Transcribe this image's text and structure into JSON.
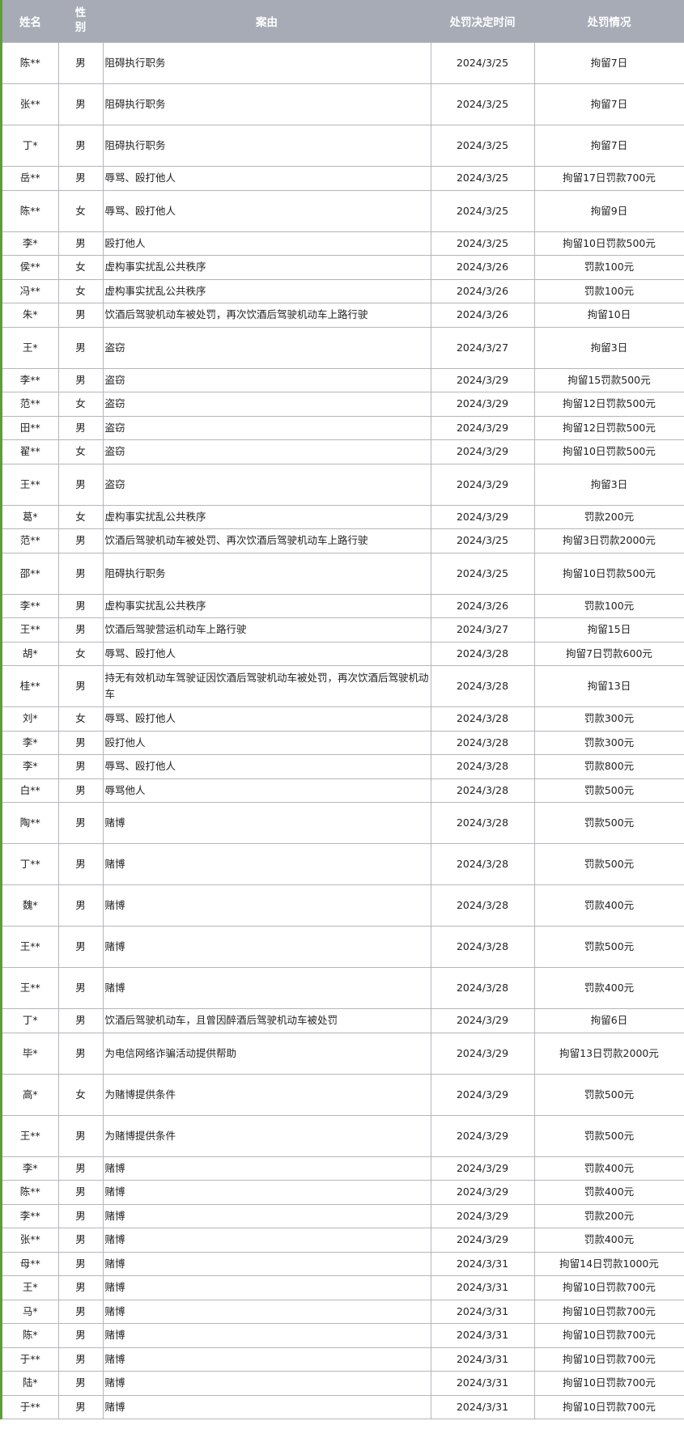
{
  "colors": {
    "header_bg": "#a6abb6",
    "left_border": "#5aa22f",
    "grid": "#b4b6bc"
  },
  "headers": [
    "姓名",
    "性别",
    "案由",
    "处罚决定时间",
    "处罚情况"
  ],
  "rows": [
    {
      "name": "陈**",
      "gender": "男",
      "reason": "阻碍执行职务",
      "date": "2024/3/25",
      "penalty": "拘留7日",
      "tall": true
    },
    {
      "name": "张**",
      "gender": "男",
      "reason": "阻碍执行职务",
      "date": "2024/3/25",
      "penalty": "拘留7日",
      "tall": true
    },
    {
      "name": "丁*",
      "gender": "男",
      "reason": "阻碍执行职务",
      "date": "2024/3/25",
      "penalty": "拘留7日",
      "tall": true
    },
    {
      "name": "岳**",
      "gender": "男",
      "reason": "辱骂、殴打他人",
      "date": "2024/3/25",
      "penalty": "拘留17日罚款700元",
      "tall": false
    },
    {
      "name": "陈**",
      "gender": "女",
      "reason": "辱骂、殴打他人",
      "date": "2024/3/25",
      "penalty": "拘留9日",
      "tall": true
    },
    {
      "name": "李*",
      "gender": "男",
      "reason": "殴打他人",
      "date": "2024/3/25",
      "penalty": "拘留10日罚款500元",
      "tall": false
    },
    {
      "name": "侯**",
      "gender": "女",
      "reason": "虚构事实扰乱公共秩序",
      "date": "2024/3/26",
      "penalty": "罚款100元",
      "tall": false
    },
    {
      "name": "冯**",
      "gender": "女",
      "reason": "虚构事实扰乱公共秩序",
      "date": "2024/3/26",
      "penalty": "罚款100元",
      "tall": false
    },
    {
      "name": "朱*",
      "gender": "男",
      "reason": "饮酒后驾驶机动车被处罚，再次饮酒后驾驶机动车上路行驶",
      "date": "2024/3/26",
      "penalty": "拘留10日",
      "tall": false
    },
    {
      "name": "王*",
      "gender": "男",
      "reason": "盗窃",
      "date": "2024/3/27",
      "penalty": "拘留3日",
      "tall": true
    },
    {
      "name": "李**",
      "gender": "男",
      "reason": "盗窃",
      "date": "2024/3/29",
      "penalty": "拘留15罚款500元",
      "tall": false
    },
    {
      "name": "范**",
      "gender": "女",
      "reason": "盗窃",
      "date": "2024/3/29",
      "penalty": "拘留12日罚款500元",
      "tall": false
    },
    {
      "name": "田**",
      "gender": "男",
      "reason": "盗窃",
      "date": "2024/3/29",
      "penalty": "拘留12日罚款500元",
      "tall": false
    },
    {
      "name": "翟**",
      "gender": "女",
      "reason": "盗窃",
      "date": "2024/3/29",
      "penalty": "拘留10日罚款500元",
      "tall": false
    },
    {
      "name": "王**",
      "gender": "男",
      "reason": "盗窃",
      "date": "2024/3/29",
      "penalty": "拘留3日",
      "tall": true
    },
    {
      "name": "葛*",
      "gender": "女",
      "reason": "虚构事实扰乱公共秩序",
      "date": "2024/3/29",
      "penalty": "罚款200元",
      "tall": false
    },
    {
      "name": "范**",
      "gender": "男",
      "reason": "饮酒后驾驶机动车被处罚、再次饮酒后驾驶机动车上路行驶",
      "date": "2024/3/25",
      "penalty": "拘留3日罚款2000元",
      "tall": false
    },
    {
      "name": "邵**",
      "gender": "男",
      "reason": "阻碍执行职务",
      "date": "2024/3/25",
      "penalty": "拘留10日罚款500元",
      "tall": true
    },
    {
      "name": "李**",
      "gender": "男",
      "reason": "虚构事实扰乱公共秩序",
      "date": "2024/3/26",
      "penalty": "罚款100元",
      "tall": false
    },
    {
      "name": "王**",
      "gender": "男",
      "reason": "饮酒后驾驶营运机动车上路行驶",
      "date": "2024/3/27",
      "penalty": "拘留15日",
      "tall": false
    },
    {
      "name": "胡*",
      "gender": "女",
      "reason": "辱骂、殴打他人",
      "date": "2024/3/28",
      "penalty": "拘留7日罚款600元",
      "tall": false
    },
    {
      "name": "桂**",
      "gender": "男",
      "reason": "持无有效机动车驾驶证因饮酒后驾驶机动车被处罚，再次饮酒后驾驶机动车",
      "date": "2024/3/28",
      "penalty": "拘留13日",
      "tall": true
    },
    {
      "name": "刘*",
      "gender": "女",
      "reason": "辱骂、殴打他人",
      "date": "2024/3/28",
      "penalty": "罚款300元",
      "tall": false
    },
    {
      "name": "李*",
      "gender": "男",
      "reason": "殴打他人",
      "date": "2024/3/28",
      "penalty": "罚款300元",
      "tall": false
    },
    {
      "name": "李*",
      "gender": "男",
      "reason": "辱骂、殴打他人",
      "date": "2024/3/28",
      "penalty": "罚款800元",
      "tall": false
    },
    {
      "name": "白**",
      "gender": "男",
      "reason": "辱骂他人",
      "date": "2024/3/28",
      "penalty": "罚款500元",
      "tall": false
    },
    {
      "name": "陶**",
      "gender": "男",
      "reason": "赌博",
      "date": "2024/3/28",
      "penalty": "罚款500元",
      "tall": true
    },
    {
      "name": "丁**",
      "gender": "男",
      "reason": "赌博",
      "date": "2024/3/28",
      "penalty": "罚款500元",
      "tall": true
    },
    {
      "name": "魏*",
      "gender": "男",
      "reason": "赌博",
      "date": "2024/3/28",
      "penalty": "罚款400元",
      "tall": true
    },
    {
      "name": "王**",
      "gender": "男",
      "reason": "赌博",
      "date": "2024/3/28",
      "penalty": "罚款500元",
      "tall": true
    },
    {
      "name": "王**",
      "gender": "男",
      "reason": "赌博",
      "date": "2024/3/28",
      "penalty": "罚款400元",
      "tall": true
    },
    {
      "name": "丁*",
      "gender": "男",
      "reason": "饮酒后驾驶机动车，且曾因醉酒后驾驶机动车被处罚",
      "date": "2024/3/29",
      "penalty": "拘留6日",
      "tall": false
    },
    {
      "name": "毕*",
      "gender": "男",
      "reason": "为电信网络诈骗活动提供帮助",
      "date": "2024/3/29",
      "penalty": "拘留13日罚款2000元",
      "tall": true
    },
    {
      "name": "高*",
      "gender": "女",
      "reason": "为赌博提供条件",
      "date": "2024/3/29",
      "penalty": "罚款500元",
      "tall": true
    },
    {
      "name": "王**",
      "gender": "男",
      "reason": "为赌博提供条件",
      "date": "2024/3/29",
      "penalty": "罚款500元",
      "tall": true
    },
    {
      "name": "李*",
      "gender": "男",
      "reason": "赌博",
      "date": "2024/3/29",
      "penalty": "罚款400元",
      "tall": false
    },
    {
      "name": "陈**",
      "gender": "男",
      "reason": "赌博",
      "date": "2024/3/29",
      "penalty": "罚款400元",
      "tall": false
    },
    {
      "name": "李**",
      "gender": "男",
      "reason": "赌博",
      "date": "2024/3/29",
      "penalty": "罚款200元",
      "tall": false
    },
    {
      "name": "张**",
      "gender": "男",
      "reason": "赌博",
      "date": "2024/3/29",
      "penalty": "罚款400元",
      "tall": false
    },
    {
      "name": "母**",
      "gender": "男",
      "reason": "赌博",
      "date": "2024/3/31",
      "penalty": "拘留14日罚款1000元",
      "tall": false
    },
    {
      "name": "王*",
      "gender": "男",
      "reason": "赌博",
      "date": "2024/3/31",
      "penalty": "拘留10日罚款700元",
      "tall": false
    },
    {
      "name": "马*",
      "gender": "男",
      "reason": "赌博",
      "date": "2024/3/31",
      "penalty": "拘留10日罚款700元",
      "tall": false
    },
    {
      "name": "陈*",
      "gender": "男",
      "reason": "赌博",
      "date": "2024/3/31",
      "penalty": "拘留10日罚款700元",
      "tall": false
    },
    {
      "name": "于**",
      "gender": "男",
      "reason": "赌博",
      "date": "2024/3/31",
      "penalty": "拘留10日罚款700元",
      "tall": false
    },
    {
      "name": "陆*",
      "gender": "男",
      "reason": "赌博",
      "date": "2024/3/31",
      "penalty": "拘留10日罚款700元",
      "tall": false
    },
    {
      "name": "于**",
      "gender": "男",
      "reason": "赌博",
      "date": "2024/3/31",
      "penalty": "拘留10日罚款700元",
      "tall": false
    }
  ]
}
